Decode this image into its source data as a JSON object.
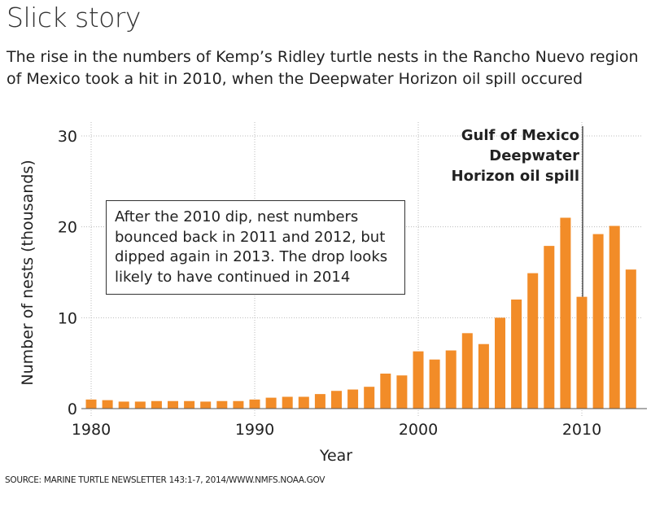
{
  "title": "Slick story",
  "subtitle": "The rise in the numbers of Kemp’s Ridley turtle nests in the Rancho Nuevo region of Mexico took a hit in 2010, when the Deepwater Horizon oil spill occured",
  "source": "SOURCE: MARINE TURTLE NEWSLETTER 143:1-7, 2014/WWW.NMFS.NOAA.GOV",
  "chart_data": {
    "type": "bar",
    "xlabel": "Year",
    "ylabel": "Number of nests (thousands)",
    "ylim": [
      0,
      30
    ],
    "xlim": [
      1980,
      2013
    ],
    "yticks": [
      "0",
      "10",
      "20",
      "30"
    ],
    "xticks": [
      "1980",
      "1990",
      "2000",
      "2010"
    ],
    "grid": true,
    "bar_color": "#f28c28",
    "categories": [
      1980,
      1981,
      1982,
      1983,
      1984,
      1985,
      1986,
      1987,
      1988,
      1989,
      1990,
      1991,
      1992,
      1993,
      1994,
      1995,
      1996,
      1997,
      1998,
      1999,
      2000,
      2001,
      2002,
      2003,
      2004,
      2005,
      2006,
      2007,
      2008,
      2009,
      2010,
      2011,
      2012,
      2013
    ],
    "values": [
      1.0,
      0.93,
      0.77,
      0.77,
      0.83,
      0.83,
      0.83,
      0.77,
      0.83,
      0.83,
      1.0,
      1.2,
      1.3,
      1.3,
      1.6,
      1.95,
      2.1,
      2.4,
      3.85,
      3.65,
      6.3,
      5.4,
      6.4,
      8.3,
      7.1,
      10.0,
      12.0,
      14.9,
      17.9,
      21.0,
      12.3,
      19.2,
      20.1,
      15.3
    ],
    "annotations": [
      {
        "x": 2010,
        "lines": [
          "Gulf of Mexico",
          "Deepwater",
          "Horizon oil spill"
        ]
      }
    ],
    "note": "After the 2010 dip, nest numbers bounced back in 2011 and 2012, but dipped again in 2013. The drop looks likely to have continued in 2014"
  }
}
